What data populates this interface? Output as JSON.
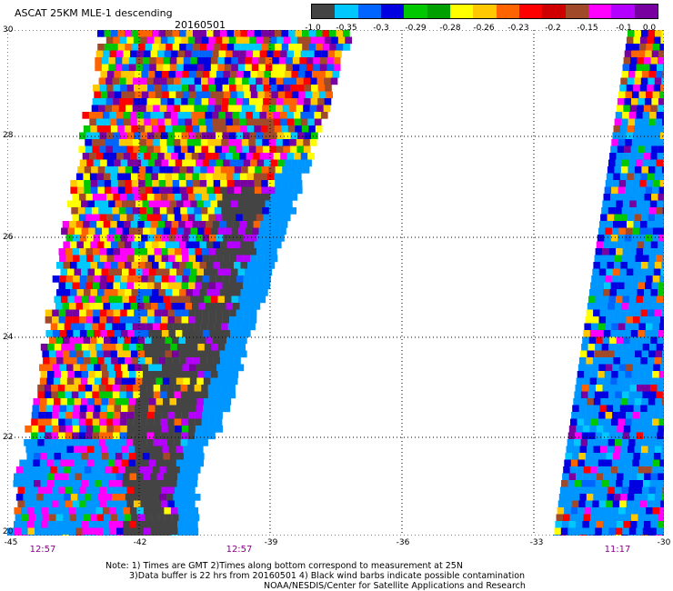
{
  "header": {
    "title": "ASCAT 25KM MLE-1 descending",
    "date": "20160501"
  },
  "colorbar": {
    "colors": [
      "#444444",
      "#00c8ff",
      "#0064ff",
      "#0000e0",
      "#00c800",
      "#00a000",
      "#ffff00",
      "#ffc800",
      "#ff6400",
      "#ff0000",
      "#d00000",
      "#a04a2a",
      "#ff00ff",
      "#b400ff",
      "#7800a0"
    ],
    "labels": [
      "-1.0",
      "-0.35",
      "-0.3",
      "-0.29",
      "-0.28",
      "-0.26",
      "-0.23",
      "-0.2",
      "-0.15",
      "-0.1",
      "0.0"
    ]
  },
  "axes": {
    "lon_ticks": [
      "-45",
      "-42",
      "-39",
      "-36",
      "-33",
      "-30"
    ],
    "lat_ticks": [
      "30",
      "28",
      "26",
      "24",
      "22",
      "20"
    ],
    "times": [
      "12:57",
      "12:57",
      "11:17"
    ]
  },
  "notes": {
    "line1": "Note: 1) Times are GMT 2)Times along bottom correspond to measurement at 25N",
    "line2": "3)Data buffer is 22 hrs from 20160501 4) Black wind barbs indicate possible contamination",
    "line3": "NOAA/NESDIS/Center for Satellite Applications and Research"
  }
}
